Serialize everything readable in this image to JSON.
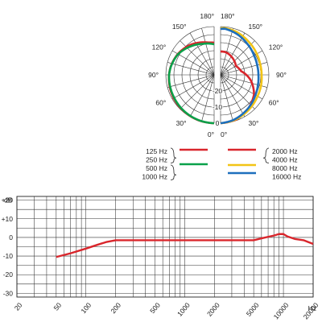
{
  "colors": {
    "red": "#d9262c",
    "green": "#0aa14a",
    "yellow": "#f2c416",
    "blue": "#1d6fbd",
    "grid": "#333333",
    "text": "#222222"
  },
  "chart_data": [
    {
      "type": "polar",
      "angle_labels": {
        "left": [
          "180°",
          "150°",
          "120°",
          "90°",
          "60°",
          "30°",
          "0°"
        ],
        "right": [
          "180°",
          "150°",
          "120°",
          "90°",
          "60°",
          "30°",
          "0°"
        ]
      },
      "angles_deg": [
        180,
        150,
        120,
        90,
        60,
        30,
        0
      ],
      "radial_labels": [
        "-20",
        "-10",
        "0"
      ],
      "radial_values_db": [
        -20,
        -10,
        0
      ],
      "rlim_db": [
        -30,
        0
      ],
      "grid": true,
      "legend": {
        "left": [
          {
            "labels": [
              "125 Hz",
              "250 Hz"
            ],
            "color": "red"
          },
          {
            "labels": [
              "500 Hz",
              "1000 Hz"
            ],
            "color": "green"
          }
        ],
        "right": [
          {
            "labels": [
              "2000 Hz",
              "4000 Hz"
            ],
            "color": "red"
          },
          {
            "labels": [
              "8000 Hz"
            ],
            "color": "yellow"
          },
          {
            "labels": [
              "16000 Hz"
            ],
            "color": "blue"
          }
        ]
      },
      "series": [
        {
          "side": "left",
          "color": "red",
          "angles": [
            0,
            20,
            40,
            60,
            80,
            90,
            100,
            120,
            140,
            160,
            170,
            180
          ],
          "db": [
            0,
            -0.2,
            -0.6,
            -1,
            -1.6,
            -2,
            -2.5,
            -4,
            -6,
            -8.5,
            -9.6,
            -10
          ]
        },
        {
          "side": "left",
          "color": "green",
          "angles": [
            0,
            20,
            40,
            60,
            80,
            90,
            100,
            120,
            140,
            160,
            180
          ],
          "db": [
            0,
            -0.3,
            -0.8,
            -1.4,
            -1.8,
            -2,
            -2.6,
            -4.2,
            -7,
            -9.5,
            -11
          ]
        },
        {
          "side": "right",
          "color": "red",
          "angles": [
            0,
            20,
            40,
            60,
            80,
            90,
            100,
            120,
            140,
            160,
            170,
            180
          ],
          "db": [
            0,
            -0.6,
            -3,
            -6,
            -11,
            -14,
            -17,
            -19,
            -17.5,
            -16,
            -15.5,
            -15.5
          ]
        },
        {
          "side": "right",
          "color": "yellow",
          "angles": [
            0,
            15,
            30,
            45,
            60,
            75,
            90,
            105,
            120,
            140,
            160,
            175,
            180
          ],
          "db": [
            0,
            -0.5,
            -1.5,
            -2.5,
            -3.5,
            -4,
            -4.5,
            -4.5,
            -4,
            -3,
            -1.5,
            -0.8,
            -1
          ]
        },
        {
          "side": "right",
          "color": "blue",
          "angles": [
            0,
            15,
            30,
            45,
            60,
            75,
            90,
            105,
            120,
            140,
            160,
            175,
            180
          ],
          "db": [
            0,
            -0.8,
            -2.2,
            -3.6,
            -5,
            -6,
            -6.5,
            -6.5,
            -6,
            -4.5,
            -2.5,
            -1.2,
            -1.5
          ]
        }
      ]
    },
    {
      "type": "line",
      "ylabel_unit": "dB",
      "xunit": "Hz",
      "ylim": [
        -32,
        22
      ],
      "xlim": [
        20,
        20000
      ],
      "x_scale": "log",
      "y_tick_labels": [
        "+20",
        "+10",
        "0",
        "-10",
        "-20",
        "-30"
      ],
      "y_ticks": [
        20,
        10,
        0,
        -10,
        -20,
        -30
      ],
      "x_tick_labels": [
        "20",
        "50",
        "100",
        "200",
        "500",
        "1000",
        "2000",
        "5000",
        "10000",
        "20000"
      ],
      "x_ticks": [
        20,
        50,
        100,
        200,
        500,
        1000,
        2000,
        5000,
        10000,
        20000
      ],
      "grid": true,
      "series": [
        {
          "color": "red",
          "x": [
            50,
            70,
            100,
            130,
            160,
            200,
            300,
            500,
            1000,
            2000,
            5000,
            6000,
            8000,
            9000,
            10000,
            11000,
            13000,
            16000,
            20000
          ],
          "y": [
            -10.5,
            -8.5,
            -6,
            -4,
            -2.5,
            -1.5,
            -1.5,
            -1.5,
            -1.5,
            -1.5,
            -1.5,
            -0.5,
            1,
            1.8,
            1.8,
            0.5,
            -0.8,
            -1.5,
            -3.5
          ]
        }
      ]
    }
  ]
}
